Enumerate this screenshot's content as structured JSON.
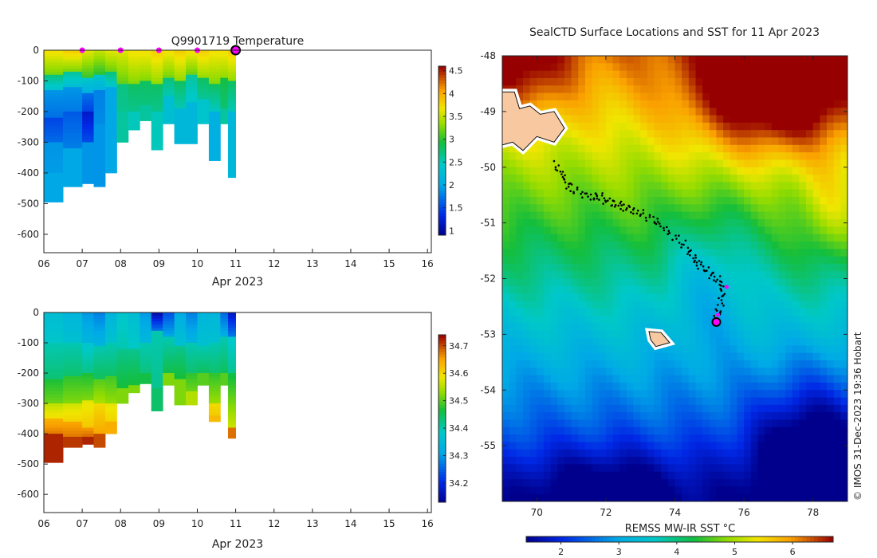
{
  "chart_data": [
    {
      "type": "heatmap",
      "title": "Q9901719  Temperature",
      "xlabel": "Apr 2023",
      "xticks": [
        "06",
        "07",
        "08",
        "09",
        "10",
        "11",
        "12",
        "13",
        "14",
        "15",
        "16"
      ],
      "yticks": [
        "0",
        "-100",
        "-200",
        "-300",
        "-400",
        "-500",
        "-600"
      ],
      "xlim": [
        6,
        16.1
      ],
      "ylim": [
        -660,
        0
      ],
      "colorbar": {
        "ticks": [
          "1",
          "1.5",
          "2",
          "2.5",
          "3",
          "3.5",
          "4",
          "4.5"
        ],
        "range": [
          0.9,
          4.6
        ]
      },
      "profiles": [
        {
          "t": 6.0,
          "depth": 495,
          "zones": [
            [
              0,
              3.7
            ],
            [
              80,
              2.7
            ],
            [
              130,
              1.9
            ],
            [
              220,
              1.5
            ],
            [
              300,
              1.9
            ],
            [
              400,
              2.0
            ]
          ]
        },
        {
          "t": 6.5,
          "depth": 445,
          "zones": [
            [
              0,
              3.8
            ],
            [
              70,
              2.6
            ],
            [
              120,
              1.9
            ],
            [
              200,
              1.6
            ],
            [
              320,
              2.0
            ]
          ]
        },
        {
          "t": 7.0,
          "depth": 435,
          "zones": [
            [
              0,
              3.6
            ],
            [
              90,
              2.4
            ],
            [
              140,
              1.7
            ],
            [
              200,
              1.2
            ],
            [
              300,
              1.9
            ]
          ]
        },
        {
          "t": 7.3,
          "depth": 445,
          "zones": [
            [
              0,
              3.5
            ],
            [
              80,
              2.4
            ],
            [
              130,
              1.8
            ],
            [
              240,
              1.9
            ]
          ]
        },
        {
          "t": 7.6,
          "depth": 400,
          "zones": [
            [
              0,
              3.6
            ],
            [
              70,
              2.7
            ],
            [
              120,
              2.0
            ]
          ]
        },
        {
          "t": 7.9,
          "depth": 300,
          "zones": [
            [
              0,
              3.6
            ],
            [
              110,
              2.7
            ],
            [
              200,
              2.6
            ]
          ]
        },
        {
          "t": 8.2,
          "depth": 260,
          "zones": [
            [
              0,
              3.7
            ],
            [
              110,
              2.8
            ],
            [
              200,
              2.5
            ]
          ]
        },
        {
          "t": 8.5,
          "depth": 230,
          "zones": [
            [
              0,
              3.7
            ],
            [
              100,
              2.8
            ],
            [
              180,
              2.6
            ]
          ]
        },
        {
          "t": 8.8,
          "depth": 325,
          "zones": [
            [
              0,
              3.8
            ],
            [
              110,
              2.8
            ],
            [
              200,
              2.5
            ]
          ]
        },
        {
          "t": 9.1,
          "depth": 240,
          "zones": [
            [
              0,
              3.7
            ],
            [
              90,
              2.7
            ],
            [
              150,
              2.3
            ]
          ]
        },
        {
          "t": 9.4,
          "depth": 305,
          "zones": [
            [
              0,
              3.8
            ],
            [
              100,
              2.8
            ],
            [
              190,
              2.2
            ]
          ]
        },
        {
          "t": 9.7,
          "depth": 305,
          "zones": [
            [
              0,
              3.7
            ],
            [
              80,
              2.6
            ],
            [
              170,
              2.2
            ]
          ]
        },
        {
          "t": 10.0,
          "depth": 240,
          "zones": [
            [
              0,
              3.8
            ],
            [
              90,
              2.8
            ],
            [
              160,
              2.4
            ]
          ]
        },
        {
          "t": 10.3,
          "depth": 360,
          "zones": [
            [
              0,
              3.7
            ],
            [
              110,
              2.8
            ],
            [
              200,
              2.1
            ]
          ]
        },
        {
          "t": 10.6,
          "depth": 240,
          "zones": [
            [
              0,
              3.7
            ],
            [
              90,
              2.9
            ],
            [
              190,
              2.6
            ]
          ]
        },
        {
          "t": 10.8,
          "depth": 415,
          "zones": [
            [
              0,
              3.8
            ],
            [
              100,
              2.8
            ],
            [
              200,
              2.2
            ]
          ]
        }
      ],
      "surface_markers": [
        7,
        8,
        9,
        10
      ],
      "current_time": 11
    },
    {
      "type": "heatmap",
      "title": "",
      "xlabel": "Apr 2023",
      "xticks": [
        "06",
        "07",
        "08",
        "09",
        "10",
        "11",
        "12",
        "13",
        "14",
        "15",
        "16"
      ],
      "yticks": [
        "0",
        "-100",
        "-200",
        "-300",
        "-400",
        "-500",
        "-600"
      ],
      "xlim": [
        6,
        16.1
      ],
      "ylim": [
        -660,
        0
      ],
      "colorbar": {
        "ticks": [
          "34.2",
          "34.3",
          "34.4",
          "34.5",
          "34.6",
          "34.7"
        ],
        "range": [
          34.13,
          34.74
        ]
      },
      "profiles": [
        {
          "t": 6.0,
          "depth": 495,
          "zones": [
            [
              0,
              34.36
            ],
            [
              100,
              34.4
            ],
            [
              220,
              34.47
            ],
            [
              300,
              34.56
            ],
            [
              350,
              34.64
            ],
            [
              400,
              34.72
            ]
          ]
        },
        {
          "t": 6.5,
          "depth": 445,
          "zones": [
            [
              0,
              34.34
            ],
            [
              100,
              34.4
            ],
            [
              210,
              34.48
            ],
            [
              300,
              34.57
            ],
            [
              360,
              34.65
            ],
            [
              410,
              34.71
            ]
          ]
        },
        {
          "t": 7.0,
          "depth": 435,
          "zones": [
            [
              0,
              34.3
            ],
            [
              100,
              34.38
            ],
            [
              200,
              34.47
            ],
            [
              290,
              34.58
            ],
            [
              380,
              34.66
            ],
            [
              410,
              34.72
            ]
          ]
        },
        {
          "t": 7.3,
          "depth": 445,
          "zones": [
            [
              0,
              34.28
            ],
            [
              110,
              34.4
            ],
            [
              220,
              34.5
            ],
            [
              300,
              34.6
            ],
            [
              400,
              34.7
            ]
          ]
        },
        {
          "t": 7.6,
          "depth": 400,
          "zones": [
            [
              0,
              34.34
            ],
            [
              100,
              34.4
            ],
            [
              210,
              34.49
            ],
            [
              300,
              34.58
            ],
            [
              360,
              34.64
            ]
          ]
        },
        {
          "t": 7.9,
          "depth": 300,
          "zones": [
            [
              0,
              34.38
            ],
            [
              120,
              34.42
            ],
            [
              250,
              34.52
            ]
          ]
        },
        {
          "t": 8.2,
          "depth": 265,
          "zones": [
            [
              0,
              34.36
            ],
            [
              120,
              34.42
            ],
            [
              240,
              34.52
            ]
          ]
        },
        {
          "t": 8.5,
          "depth": 235,
          "zones": [
            [
              0,
              34.3
            ],
            [
              100,
              34.4
            ],
            [
              200,
              34.46
            ]
          ]
        },
        {
          "t": 8.8,
          "depth": 325,
          "zones": [
            [
              0,
              34.16
            ],
            [
              60,
              34.4
            ],
            [
              250,
              34.44
            ]
          ]
        },
        {
          "t": 9.1,
          "depth": 240,
          "zones": [
            [
              0,
              34.24
            ],
            [
              80,
              34.4
            ],
            [
              200,
              34.52
            ]
          ]
        },
        {
          "t": 9.4,
          "depth": 305,
          "zones": [
            [
              0,
              34.32
            ],
            [
              110,
              34.42
            ],
            [
              220,
              34.52
            ]
          ]
        },
        {
          "t": 9.7,
          "depth": 305,
          "zones": [
            [
              0,
              34.28
            ],
            [
              100,
              34.4
            ],
            [
              200,
              34.48
            ],
            [
              260,
              34.55
            ]
          ]
        },
        {
          "t": 10.0,
          "depth": 240,
          "zones": [
            [
              0,
              34.34
            ],
            [
              110,
              34.4
            ],
            [
              200,
              34.5
            ]
          ]
        },
        {
          "t": 10.3,
          "depth": 360,
          "zones": [
            [
              0,
              34.34
            ],
            [
              100,
              34.4
            ],
            [
              200,
              34.48
            ],
            [
              300,
              34.6
            ],
            [
              340,
              34.63
            ]
          ]
        },
        {
          "t": 10.6,
          "depth": 240,
          "zones": [
            [
              0,
              34.26
            ],
            [
              80,
              34.4
            ],
            [
              200,
              34.5
            ]
          ]
        },
        {
          "t": 10.8,
          "depth": 415,
          "zones": [
            [
              0,
              34.18
            ],
            [
              80,
              34.38
            ],
            [
              200,
              34.46
            ],
            [
              380,
              34.68
            ]
          ]
        }
      ],
      "current_time": 11
    },
    {
      "type": "heatmap",
      "title": "SealCTD Surface Locations and SST for 11 Apr 2023",
      "xticks": [
        "70",
        "72",
        "74",
        "76",
        "78"
      ],
      "yticks": [
        "-48",
        "-49",
        "-50",
        "-51",
        "-52",
        "-53",
        "-54",
        "-55"
      ],
      "xlim": [
        69,
        79
      ],
      "ylim": [
        -56,
        -48
      ],
      "colorbar": {
        "label": "REMSS MW-IR SST °C",
        "ticks": [
          "2",
          "3",
          "4",
          "5",
          "6"
        ],
        "range": [
          1.4,
          6.7
        ]
      },
      "credit": "© IMOS 31-Dec-2023 19:36 Hobart",
      "track": [
        [
          70.5,
          -49.95
        ],
        [
          70.7,
          -50.1
        ],
        [
          70.85,
          -50.25
        ],
        [
          71.0,
          -50.4
        ],
        [
          71.3,
          -50.47
        ],
        [
          71.6,
          -50.55
        ],
        [
          71.8,
          -50.5
        ],
        [
          72.0,
          -50.6
        ],
        [
          72.2,
          -50.65
        ],
        [
          72.4,
          -50.68
        ],
        [
          72.6,
          -50.75
        ],
        [
          72.85,
          -50.78
        ],
        [
          73.1,
          -50.85
        ],
        [
          73.4,
          -50.95
        ],
        [
          73.6,
          -51.05
        ],
        [
          73.9,
          -51.2
        ],
        [
          74.2,
          -51.35
        ],
        [
          74.4,
          -51.5
        ],
        [
          74.55,
          -51.65
        ],
        [
          74.7,
          -51.75
        ],
        [
          74.9,
          -51.85
        ],
        [
          75.1,
          -51.95
        ],
        [
          75.3,
          -52.05
        ],
        [
          75.4,
          -52.2
        ],
        [
          75.35,
          -52.4
        ],
        [
          75.25,
          -52.6
        ],
        [
          75.2,
          -52.75
        ]
      ],
      "track_magenta": [
        [
          75.25,
          -52.65
        ],
        [
          75.5,
          -52.15
        ]
      ],
      "current_position": [
        75.2,
        -52.78
      ],
      "islands": [
        [
          [
            69.0,
            -48.65
          ],
          [
            69.35,
            -48.65
          ],
          [
            69.5,
            -48.95
          ],
          [
            69.8,
            -48.9
          ],
          [
            70.1,
            -49.05
          ],
          [
            70.5,
            -49.0
          ],
          [
            70.8,
            -49.3
          ],
          [
            70.5,
            -49.55
          ],
          [
            70.0,
            -49.45
          ],
          [
            69.6,
            -49.7
          ],
          [
            69.3,
            -49.55
          ],
          [
            69.0,
            -49.6
          ]
        ],
        [
          [
            73.25,
            -52.95
          ],
          [
            73.6,
            -52.97
          ],
          [
            73.85,
            -53.15
          ],
          [
            73.45,
            -53.22
          ],
          [
            73.3,
            -53.1
          ]
        ]
      ]
    }
  ]
}
